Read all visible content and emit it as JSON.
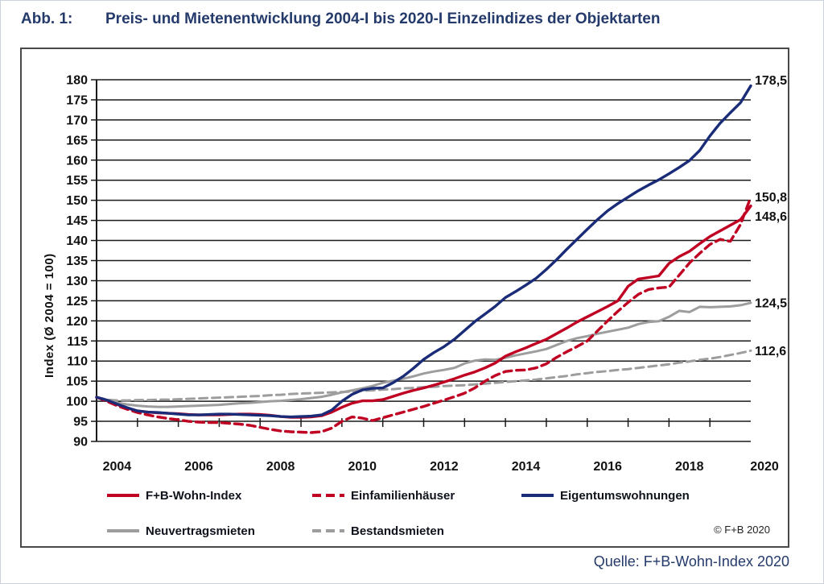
{
  "title": {
    "label": "Abb. 1:",
    "text": "Preis- und Mietenentwicklung 2004-I bis 2020-I Einzelindizes der Objektarten"
  },
  "source": "Quelle: F+B-Wohn-Index 2020",
  "copyright": "© F+B  2020",
  "colors": {
    "heading_navy": "#243a6b",
    "blue_line": "#1a2c78",
    "red_line": "#c00022",
    "gray_line": "#9d9d9d",
    "axis_black": "#1a1a1a"
  },
  "chart_data": {
    "type": "line",
    "ylabel": "Index (Ø 2004 = 100)",
    "ylim": [
      90,
      180
    ],
    "ystep": 5,
    "grid": true,
    "x_start": "2004-I",
    "x_end": "2020-I",
    "x_points_per_year": 4,
    "x_tick_labels": [
      "2004",
      "2006",
      "2008",
      "2010",
      "2012",
      "2014",
      "2016",
      "2018",
      "2020"
    ],
    "legend_position": "bottom",
    "series": [
      {
        "name": "F+B-Wohn-Index",
        "color": "red",
        "dash": false,
        "end_label": "148,6",
        "end_dy": 13,
        "values": [
          101,
          100.2,
          99.2,
          98.3,
          97.6,
          97.3,
          97.1,
          97,
          96.9,
          96.7,
          96.6,
          96.6,
          96.6,
          96.7,
          96.8,
          96.8,
          96.7,
          96.5,
          96.2,
          96,
          96,
          96.1,
          96.4,
          97.3,
          98.5,
          99.5,
          100.1,
          100.1,
          100.4,
          101.2,
          102,
          102.7,
          103.3,
          104,
          104.8,
          105.6,
          106.5,
          107.3,
          108.3,
          109.5,
          111.2,
          112.3,
          113.3,
          114.4,
          115.4,
          116.8,
          118.2,
          119.7,
          121,
          122.3,
          123.6,
          125,
          128.6,
          130.4,
          130.8,
          131.2,
          134.3,
          136,
          137.3,
          139.2,
          141,
          142.4,
          143.8,
          145.2,
          148.6
        ]
      },
      {
        "name": "Einfamilienhäuser",
        "color": "red",
        "dash": true,
        "end_label": "150,8",
        "end_dy": 0,
        "values": [
          101,
          100,
          98.9,
          98,
          97.2,
          96.6,
          96.1,
          95.7,
          95.4,
          95,
          94.8,
          94.7,
          94.7,
          94.5,
          94.3,
          94,
          93.5,
          93,
          92.6,
          92.4,
          92.3,
          92.2,
          92.4,
          93.3,
          95,
          96.1,
          95.8,
          95.2,
          95.9,
          96.6,
          97.3,
          98,
          98.7,
          99.5,
          100.3,
          101.1,
          102,
          103.3,
          105,
          106.4,
          107.4,
          107.7,
          107.8,
          108.3,
          109.3,
          110.9,
          112.3,
          113.6,
          115,
          117.5,
          120,
          122.4,
          124.6,
          126.6,
          127.8,
          128.2,
          128.4,
          131.4,
          134.4,
          136.8,
          139,
          140.3,
          139.8,
          144,
          150.8
        ]
      },
      {
        "name": "Eigentumswohnungen",
        "color": "blue",
        "dash": false,
        "end_label": "178,5",
        "end_dy": -7,
        "values": [
          101,
          100.3,
          99.3,
          98.4,
          97.6,
          97.3,
          97.2,
          97,
          96.8,
          96.6,
          96.6,
          96.7,
          96.8,
          96.8,
          96.7,
          96.6,
          96.5,
          96.4,
          96.2,
          96.1,
          96.2,
          96.3,
          96.6,
          97.8,
          100,
          101.7,
          102.8,
          103.2,
          103.3,
          104.6,
          106.2,
          108.2,
          110.4,
          112.1,
          113.6,
          115.4,
          117.6,
          119.8,
          121.7,
          123.6,
          125.8,
          127.3,
          128.9,
          130.6,
          132.8,
          135.2,
          137.8,
          140.3,
          142.8,
          145.2,
          147.4,
          149.2,
          150.8,
          152.4,
          153.8,
          155.1,
          156.6,
          158.2,
          159.9,
          162.4,
          166,
          169.2,
          171.8,
          174.3,
          178.5
        ]
      },
      {
        "name": "Neuvertragsmieten",
        "color": "gray",
        "dash": false,
        "end_label": "124,5",
        "end_dy": 0,
        "values": [
          101,
          100.2,
          99.6,
          99.2,
          98.9,
          98.7,
          98.6,
          98.6,
          98.7,
          98.8,
          98.9,
          99,
          99.1,
          99.3,
          99.5,
          99.6,
          99.8,
          100,
          100.1,
          100.3,
          100.5,
          100.8,
          101.1,
          101.6,
          102.2,
          102.7,
          103.2,
          103.8,
          104.6,
          105.1,
          105.6,
          106.2,
          106.9,
          107.4,
          107.8,
          108.3,
          109.4,
          110.1,
          110.4,
          110.3,
          110.8,
          111.4,
          111.9,
          112.4,
          113,
          114,
          115,
          115.7,
          116.2,
          116.8,
          117.3,
          117.8,
          118.3,
          119.2,
          119.7,
          119.9,
          121,
          122.5,
          122.2,
          123.5,
          123.4,
          123.5,
          123.6,
          123.9,
          124.5
        ]
      },
      {
        "name": "Bestandsmieten",
        "color": "gray",
        "dash": true,
        "end_label": "112,6",
        "end_dy": 0,
        "values": [
          101,
          100.4,
          100.2,
          100.2,
          100.3,
          100.3,
          100.4,
          100.4,
          100.5,
          100.6,
          100.7,
          100.8,
          100.9,
          101,
          101.1,
          101.2,
          101.3,
          101.5,
          101.6,
          101.8,
          101.9,
          102,
          102.1,
          102.2,
          102.3,
          102.4,
          102.6,
          102.7,
          102.9,
          103,
          103.2,
          103.3,
          103.5,
          103.6,
          103.8,
          103.9,
          104,
          104.2,
          104.4,
          104.6,
          104.8,
          105,
          105.2,
          105.4,
          105.7,
          106,
          106.3,
          106.7,
          107,
          107.3,
          107.5,
          107.8,
          108,
          108.3,
          108.6,
          108.9,
          109.2,
          109.6,
          109.9,
          110.3,
          110.6,
          111,
          111.5,
          112,
          112.6
        ]
      }
    ]
  }
}
